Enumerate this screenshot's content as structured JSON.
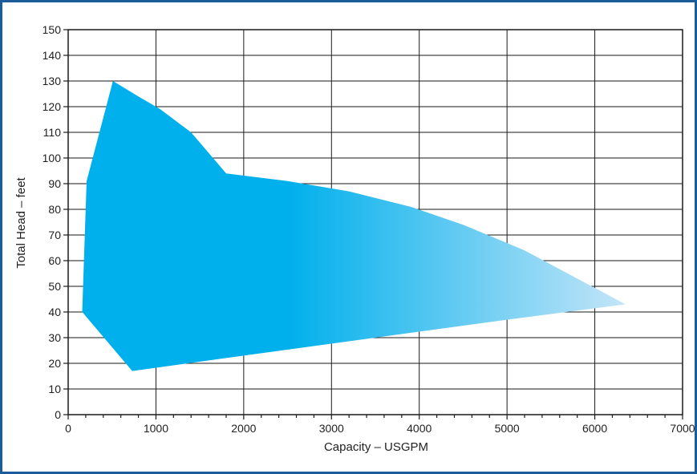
{
  "chart_data": {
    "type": "area",
    "title": "",
    "xlabel": "Capacity – USGPM",
    "ylabel": "Total Head – feet",
    "xlim": [
      0,
      7000
    ],
    "ylim": [
      0,
      150
    ],
    "x_ticks": [
      0,
      1000,
      2000,
      3000,
      4000,
      5000,
      6000,
      7000
    ],
    "y_ticks": [
      0,
      10,
      20,
      30,
      40,
      50,
      60,
      70,
      80,
      90,
      100,
      110,
      120,
      130,
      140,
      150
    ],
    "x_tick_labels": [
      "0",
      "1000",
      "2000",
      "3000",
      "4000",
      "5000",
      "6000",
      "7000"
    ],
    "y_tick_labels": [
      "0",
      "10",
      "20",
      "30",
      "40",
      "50",
      "60",
      "70",
      "80",
      "90",
      "100",
      "110",
      "120",
      "130",
      "140",
      "150"
    ],
    "grid": true,
    "region": [
      {
        "x": 160,
        "y": 40
      },
      {
        "x": 210,
        "y": 91
      },
      {
        "x": 510,
        "y": 130
      },
      {
        "x": 800,
        "y": 124
      },
      {
        "x": 1050,
        "y": 119
      },
      {
        "x": 1400,
        "y": 110
      },
      {
        "x": 1800,
        "y": 94
      },
      {
        "x": 2500,
        "y": 91
      },
      {
        "x": 3200,
        "y": 87
      },
      {
        "x": 3900,
        "y": 81
      },
      {
        "x": 4500,
        "y": 74
      },
      {
        "x": 5200,
        "y": 64
      },
      {
        "x": 5800,
        "y": 53
      },
      {
        "x": 6350,
        "y": 43
      },
      {
        "x": 5000,
        "y": 37
      },
      {
        "x": 3500,
        "y": 30
      },
      {
        "x": 2000,
        "y": 23
      },
      {
        "x": 730,
        "y": 17
      }
    ],
    "colors": {
      "fill_dark": "#00b0ec",
      "fill_light": "#c4e5f8",
      "grid": "#1a1a1a",
      "frame": "#1a5d9a"
    }
  }
}
